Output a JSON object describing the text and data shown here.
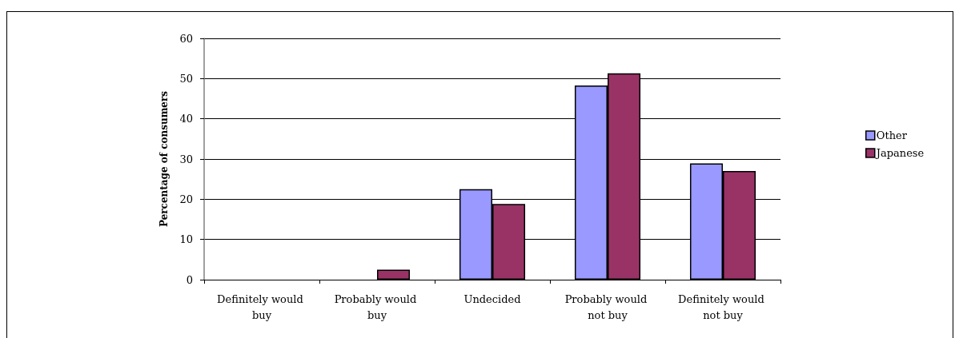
{
  "chart_data": {
    "type": "bar",
    "ylabel": "Percentage of consumers",
    "categories": [
      "Definitely would buy",
      "Probably would buy",
      "Undecided",
      "Probably would not buy",
      "Definitely would not buy"
    ],
    "series": [
      {
        "name": "Other",
        "color": "#9999ff",
        "values": [
          0,
          0,
          22.5,
          48.3,
          28.9
        ]
      },
      {
        "name": "Japanese",
        "color": "#993366",
        "values": [
          0,
          2.5,
          18.8,
          51.3,
          27.0
        ]
      }
    ],
    "ylim": [
      0,
      60
    ],
    "yticks": [
      0,
      10,
      20,
      30,
      40,
      50,
      60
    ],
    "grid": "y",
    "legend": "right"
  }
}
